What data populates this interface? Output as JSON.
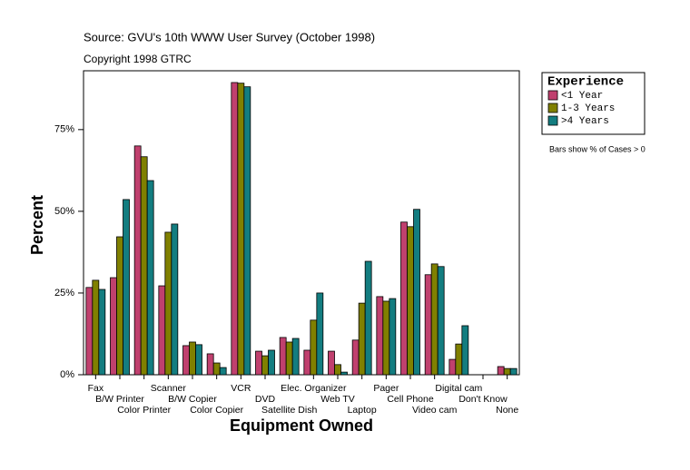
{
  "chart_data": {
    "type": "bar",
    "title": "Source: GVU's 10th WWW User Survey (October 1998)",
    "subtitle": "Copyright 1998 GTRC",
    "x_label": "Equipment Owned",
    "y_label": "Percent",
    "note": "Bars show % of Cases > 0",
    "legend_title": "Experience",
    "categories": [
      "Fax",
      "B/W Printer",
      "Color Printer",
      "Scanner",
      "B/W Copier",
      "Color Copier",
      "VCR",
      "DVD",
      "Satellite Dish",
      "Elec. Organizer",
      "Web TV",
      "Laptop",
      "Pager",
      "Cell Phone",
      "Video cam",
      "Digital cam",
      "Don't Know",
      "None"
    ],
    "series": [
      {
        "name": "<1 Year",
        "color": "#c0406e",
        "values": [
          26.7,
          29.7,
          70,
          27.2,
          8.9,
          6.4,
          89.4,
          7.2,
          11.4,
          7.5,
          7.2,
          10.6,
          23.9,
          46.7,
          30.6,
          4.7,
          null,
          2.5
        ]
      },
      {
        "name": "1-3 Years",
        "color": "#808000",
        "values": [
          28.9,
          42.2,
          66.7,
          43.6,
          10,
          3.6,
          89.2,
          5.8,
          10,
          16.7,
          3.1,
          21.9,
          22.5,
          45.3,
          33.9,
          9.4,
          null,
          1.9
        ]
      },
      {
        "name": ">4 Years",
        "color": "#137d80",
        "values": [
          26.1,
          53.6,
          59.4,
          46.1,
          9.2,
          2.2,
          88.1,
          7.5,
          11.1,
          25,
          0.8,
          34.7,
          23.3,
          50.6,
          33.1,
          15,
          null,
          1.9
        ]
      }
    ],
    "ylim": [
      0,
      93
    ],
    "yticks": [
      {
        "value": 0,
        "label": "0%"
      },
      {
        "value": 25,
        "label": "25%"
      },
      {
        "value": 50,
        "label": "50%"
      },
      {
        "value": 75,
        "label": "75%"
      }
    ]
  }
}
